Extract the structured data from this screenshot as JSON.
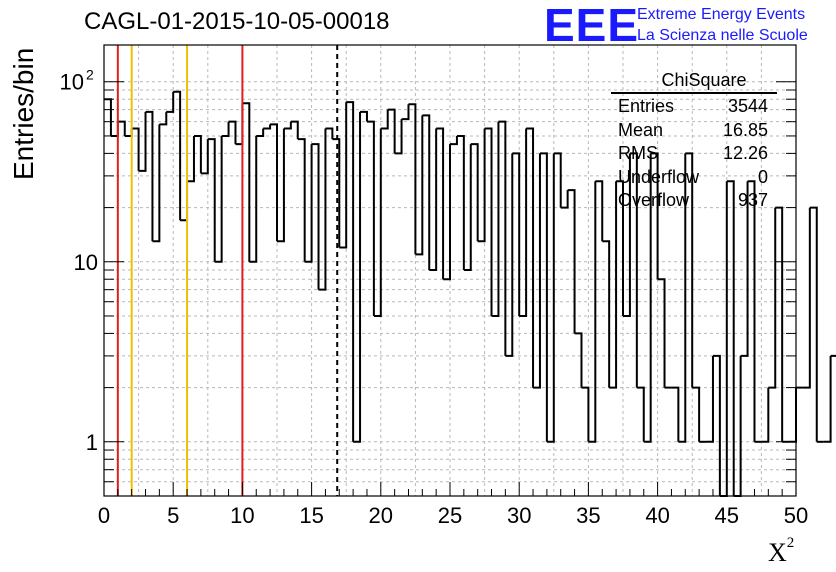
{
  "title": "CAGL-01-2015-10-05-00018",
  "logo": {
    "mark": "EEE",
    "line1": "Extreme Energy Events",
    "line2": "La Scienza nelle Scuole"
  },
  "axes": {
    "ylabel": "Entries/bin",
    "xlabel": "X",
    "xlabel_sup": "2",
    "x_ticks": [
      "0",
      "5",
      "10",
      "15",
      "20",
      "25",
      "30",
      "35",
      "40",
      "45",
      "50"
    ],
    "y_ticks": [
      {
        "value": 1,
        "label": "1"
      },
      {
        "value": 10,
        "label": "10"
      },
      {
        "value": 100,
        "label": "10",
        "sup": "2"
      }
    ]
  },
  "stats": {
    "name": "ChiSquare",
    "rows": [
      {
        "label": "Entries",
        "value": "3544"
      },
      {
        "label": "Mean",
        "value": "16.85"
      },
      {
        "label": "RMS",
        "value": "12.26"
      },
      {
        "label": "Underflow",
        "value": "0"
      },
      {
        "label": "Overflow",
        "value": "937"
      }
    ]
  },
  "colors": {
    "red": "#e0201b",
    "yellow": "#f0c000",
    "histogram": "#000000",
    "grid": "#b8b8b8",
    "logo": "#1a1aff"
  },
  "chart_data": {
    "type": "histogram",
    "title": "CAGL-01-2015-10-05-00018",
    "xlabel": "X²",
    "ylabel": "Entries/bin",
    "xlim": [
      0,
      50
    ],
    "ylim": [
      0.5,
      160
    ],
    "yscale": "log",
    "grid": true,
    "bin_width": 0.5,
    "values": [
      80,
      50,
      60,
      50,
      55,
      32,
      68,
      13,
      58,
      68,
      88,
      17,
      28,
      50,
      31,
      48,
      10,
      50,
      60,
      45,
      76,
      10,
      50,
      55,
      58,
      13,
      55,
      60,
      48,
      10,
      45,
      7,
      55,
      48,
      12,
      77,
      1,
      68,
      60,
      5,
      55,
      70,
      40,
      62,
      75,
      11,
      65,
      9,
      55,
      8,
      45,
      50,
      9,
      45,
      13,
      55,
      5,
      60,
      3,
      40,
      5,
      55,
      2,
      40,
      1,
      40,
      20,
      25,
      4,
      2,
      1,
      28,
      13,
      2,
      28,
      5,
      40,
      2,
      1,
      40,
      8,
      2,
      2,
      1,
      40,
      2,
      1,
      1,
      3,
      0,
      28,
      0,
      3,
      28,
      1,
      1,
      2,
      20,
      1,
      1,
      2,
      2,
      20,
      1,
      1,
      3,
      1,
      1,
      10,
      1,
      1,
      10,
      3,
      2,
      0,
      3,
      20,
      0,
      3,
      3,
      10,
      1,
      0,
      0,
      0,
      3,
      0,
      1,
      10,
      0,
      10,
      1,
      1,
      1,
      1,
      2,
      1,
      1,
      1,
      1,
      5,
      10,
      1,
      1,
      15,
      1,
      1,
      1,
      1,
      20
    ],
    "vertical_lines": [
      {
        "x": 1,
        "color": "red",
        "style": "solid"
      },
      {
        "x": 2,
        "color": "yellow",
        "style": "solid"
      },
      {
        "x": 6,
        "color": "yellow",
        "style": "solid"
      },
      {
        "x": 10,
        "color": "red",
        "style": "solid"
      },
      {
        "x": 16.85,
        "color": "black",
        "style": "dashed"
      }
    ]
  }
}
